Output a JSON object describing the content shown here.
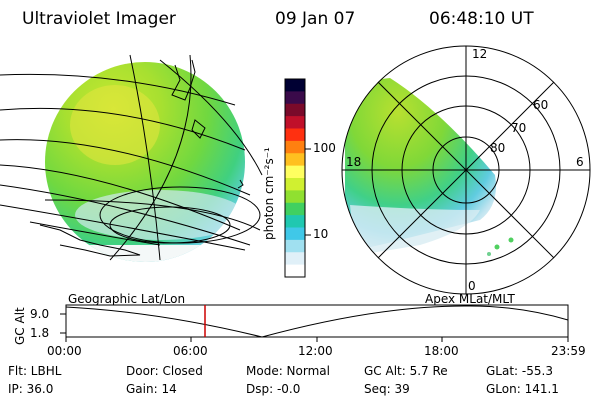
{
  "header": {
    "title": "Ultraviolet Imager",
    "date": "09 Jan 07",
    "time": "06:48:10 UT"
  },
  "colorbar": {
    "unit_label": "photon cm⁻²s⁻¹",
    "ticks": [
      "100",
      "10"
    ],
    "colors": [
      "#000033",
      "#3a0a4a",
      "#7a0a2a",
      "#c0102a",
      "#ff3010",
      "#ff8010",
      "#ffc020",
      "#ffff60",
      "#d0f030",
      "#90e030",
      "#40d060",
      "#20c8b0",
      "#40c8e8",
      "#a0e0f0",
      "#e0f0f8",
      "#ffffff"
    ]
  },
  "polar": {
    "labels": {
      "top": "12",
      "left": "18",
      "right": "6",
      "bottom": "0"
    },
    "lat_labels": [
      "60",
      "70",
      "80"
    ]
  },
  "timeline": {
    "left_label": "Geographic Lat/Lon",
    "right_label": "Apex  MLat/MLT",
    "axis_title": "GC Alt",
    "y_ticks": [
      "9.0",
      "1.8"
    ],
    "x_ticks": [
      "00:00",
      "06:00",
      "12:00",
      "18:00",
      "23:59"
    ],
    "cursor_time": "06:48"
  },
  "footer": {
    "flt": "Flt: LBHL",
    "ip": "IP: 36.0",
    "door": "Door: Closed",
    "gain": "Gain: 14",
    "mode": "Mode: Normal",
    "dsp": "Dsp:    -0.0",
    "gcalt": "GC Alt: 5.7 Re",
    "seq": "Seq: 39",
    "glat": "GLat: -55.3",
    "glon": "GLon: 141.1"
  },
  "accent": {
    "cursor": "#cc0000"
  }
}
